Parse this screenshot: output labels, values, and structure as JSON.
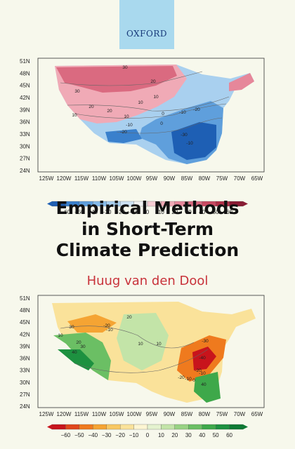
{
  "publisher": {
    "name": "OXFORD"
  },
  "book": {
    "title_lines": [
      "Empirical Methods",
      "in Short-Term",
      "Climate Prediction"
    ],
    "author": "Huug van den Dool"
  },
  "maps": [
    {
      "latitudes": [
        "51N",
        "48N",
        "45N",
        "42N",
        "39N",
        "36N",
        "33N",
        "30N",
        "27N",
        "24N"
      ],
      "longitudes": [
        "125W",
        "120W",
        "115W",
        "110W",
        "105W",
        "100W",
        "95W",
        "90W",
        "85W",
        "80W",
        "75W",
        "70W",
        "65W"
      ],
      "contour_labels": [
        "30",
        "20",
        "30",
        "20",
        "10",
        "10",
        "20",
        "10",
        "0",
        "-10",
        "-20",
        "-10",
        "-20",
        "-30",
        "-10",
        "0",
        "10"
      ],
      "colorbar_ticks": [
        "−60",
        "−50",
        "−40",
        "−30",
        "−20",
        "−10",
        "0",
        "10",
        "20",
        "30",
        "40",
        "50",
        "60"
      ],
      "colorbar_colors": [
        "#1e5fb4",
        "#3a80cc",
        "#5f9fdc",
        "#86bbe8",
        "#a9d0ef",
        "#cfe3f4",
        "#f1f2f2",
        "#f6cdd3",
        "#f0aab6",
        "#e6879a",
        "#da6a80",
        "#c84a62",
        "#b23048",
        "#8a1c34"
      ]
    },
    {
      "latitudes": [
        "51N",
        "48N",
        "45N",
        "42N",
        "39N",
        "36N",
        "33N",
        "30N",
        "27N",
        "24N"
      ],
      "longitudes": [
        "125W",
        "120W",
        "115W",
        "110W",
        "105W",
        "100W",
        "95W",
        "90W",
        "85W",
        "80W",
        "75W",
        "70W",
        "65W"
      ],
      "contour_labels": [
        "-20",
        "-10",
        "20",
        "30",
        "10",
        "20",
        "30",
        "40",
        "10",
        "10",
        "-30",
        "-40",
        "-20",
        "-10",
        "0",
        "-20",
        "-10",
        "40"
      ],
      "colorbar_ticks": [
        "−60",
        "−50",
        "−40",
        "−30",
        "−20",
        "−10",
        "0",
        "10",
        "20",
        "30",
        "40",
        "50",
        "60"
      ],
      "colorbar_colors": [
        "#c8141c",
        "#e0461c",
        "#ef7a1e",
        "#f5a433",
        "#f8c862",
        "#fae29a",
        "#fdf5d2",
        "#e4f2cf",
        "#c3e4a8",
        "#98d283",
        "#6bbf64",
        "#3ea84a",
        "#1d9140",
        "#0d7a34"
      ]
    }
  ]
}
